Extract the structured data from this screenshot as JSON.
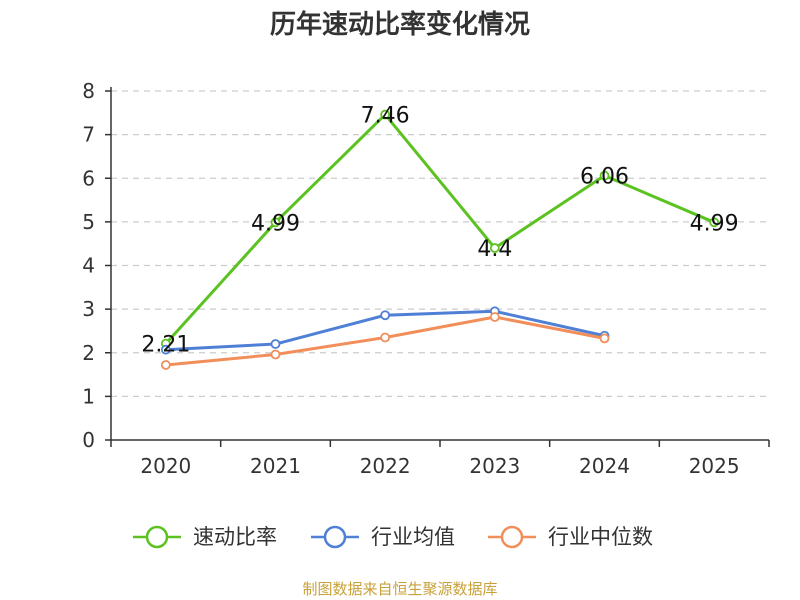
{
  "chart_data": {
    "type": "line",
    "title": "历年速动比率变化情况",
    "categories": [
      "2020",
      "2021",
      "2022",
      "2023",
      "2024",
      "2025"
    ],
    "ylim": [
      0,
      8
    ],
    "yticks": [
      "0",
      "1",
      "2",
      "3",
      "4",
      "5",
      "6",
      "7",
      "8"
    ],
    "grid": true,
    "legend_position": "bottom",
    "series": [
      {
        "name": "速动比率",
        "color": "#5cc221",
        "values": [
          2.21,
          4.99,
          7.46,
          4.4,
          6.06,
          4.99
        ],
        "labels": [
          "2.21",
          "4.99",
          "7.46",
          "4.4",
          "6.06",
          "4.99"
        ]
      },
      {
        "name": "行业均值",
        "color": "#4f80d6",
        "values": [
          2.07,
          2.2,
          2.86,
          2.95,
          2.39,
          null
        ]
      },
      {
        "name": "行业中位数",
        "color": "#f28e5a",
        "values": [
          1.72,
          1.96,
          2.35,
          2.82,
          2.33,
          null
        ]
      }
    ],
    "source": "制图数据来自恒生聚源数据库"
  },
  "colors": {
    "source_text": "#c9a13a",
    "axis": "#333333",
    "grid": "#cccccc"
  }
}
